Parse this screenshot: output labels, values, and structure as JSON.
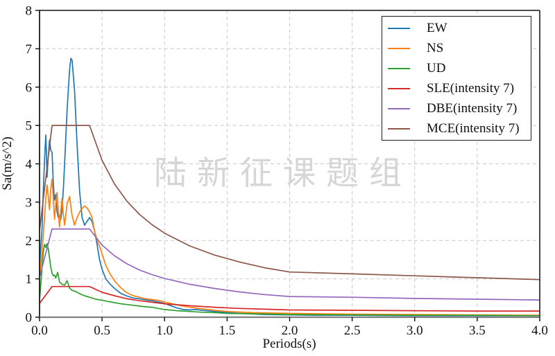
{
  "figure": {
    "background": "#ffffff",
    "watermark_text": "陆新征课题组",
    "watermark_color": "#d6d6d6"
  },
  "chart_data": {
    "type": "line",
    "title": "",
    "xlabel": "Periods(s)",
    "ylabel": "Sa(m/s^2)",
    "xlim": [
      0,
      4
    ],
    "ylim": [
      0,
      8
    ],
    "xticks": [
      0.0,
      0.5,
      1.0,
      1.5,
      2.0,
      2.5,
      3.0,
      3.5,
      4.0
    ],
    "xtick_labels": [
      "0.0",
      "0.5",
      "1.0",
      "1.5",
      "2.0",
      "2.5",
      "3.0",
      "3.5",
      "4.0"
    ],
    "yticks": [
      0,
      1,
      2,
      3,
      4,
      5,
      6,
      7,
      8
    ],
    "ytick_labels": [
      "0",
      "1",
      "2",
      "3",
      "4",
      "5",
      "6",
      "7",
      "8"
    ],
    "grid": "dashed",
    "grid_color": "#c9c9c9",
    "legend_position": "upper right",
    "watermark": "陆新征课题组",
    "series": [
      {
        "name": "EW",
        "color": "#1f77b4",
        "points": [
          [
            0,
            1.35
          ],
          [
            0.02,
            2.3
          ],
          [
            0.03,
            3.3
          ],
          [
            0.04,
            4.1
          ],
          [
            0.05,
            4.75
          ],
          [
            0.055,
            4.3
          ],
          [
            0.06,
            3.65
          ],
          [
            0.07,
            4.2
          ],
          [
            0.08,
            4.62
          ],
          [
            0.09,
            4.35
          ],
          [
            0.1,
            4.3
          ],
          [
            0.11,
            3.5
          ],
          [
            0.12,
            3.05
          ],
          [
            0.13,
            3.2
          ],
          [
            0.14,
            2.75
          ],
          [
            0.15,
            2.6
          ],
          [
            0.16,
            2.65
          ],
          [
            0.17,
            2.55
          ],
          [
            0.18,
            2.8
          ],
          [
            0.19,
            3.3
          ],
          [
            0.2,
            4.0
          ],
          [
            0.22,
            5.4
          ],
          [
            0.24,
            6.45
          ],
          [
            0.25,
            6.75
          ],
          [
            0.26,
            6.7
          ],
          [
            0.28,
            5.9
          ],
          [
            0.3,
            4.5
          ],
          [
            0.32,
            3.3
          ],
          [
            0.34,
            2.6
          ],
          [
            0.36,
            2.4
          ],
          [
            0.38,
            2.5
          ],
          [
            0.4,
            2.6
          ],
          [
            0.42,
            2.5
          ],
          [
            0.44,
            2.25
          ],
          [
            0.46,
            1.9
          ],
          [
            0.48,
            1.5
          ],
          [
            0.5,
            1.25
          ],
          [
            0.53,
            1.0
          ],
          [
            0.56,
            0.88
          ],
          [
            0.6,
            0.75
          ],
          [
            0.65,
            0.62
          ],
          [
            0.7,
            0.55
          ],
          [
            0.75,
            0.5
          ],
          [
            0.8,
            0.48
          ],
          [
            0.85,
            0.45
          ],
          [
            0.9,
            0.43
          ],
          [
            0.95,
            0.4
          ],
          [
            1.0,
            0.36
          ],
          [
            1.05,
            0.3
          ],
          [
            1.1,
            0.24
          ],
          [
            1.15,
            0.2
          ],
          [
            1.2,
            0.19
          ],
          [
            1.25,
            0.2
          ],
          [
            1.3,
            0.18
          ],
          [
            1.4,
            0.15
          ],
          [
            1.5,
            0.12
          ],
          [
            1.6,
            0.1
          ],
          [
            1.8,
            0.07
          ],
          [
            2.0,
            0.06
          ],
          [
            2.2,
            0.05
          ],
          [
            2.5,
            0.05
          ],
          [
            3.0,
            0.04
          ],
          [
            3.5,
            0.04
          ],
          [
            4.0,
            0.04
          ]
        ]
      },
      {
        "name": "NS",
        "color": "#ff7f0e",
        "points": [
          [
            0,
            1.05
          ],
          [
            0.02,
            1.7
          ],
          [
            0.04,
            2.6
          ],
          [
            0.05,
            3.1
          ],
          [
            0.06,
            3.45
          ],
          [
            0.07,
            3.15
          ],
          [
            0.08,
            2.8
          ],
          [
            0.09,
            3.35
          ],
          [
            0.1,
            3.6
          ],
          [
            0.11,
            3.1
          ],
          [
            0.12,
            2.55
          ],
          [
            0.13,
            2.95
          ],
          [
            0.14,
            3.25
          ],
          [
            0.15,
            2.8
          ],
          [
            0.16,
            2.35
          ],
          [
            0.17,
            2.75
          ],
          [
            0.18,
            3.1
          ],
          [
            0.19,
            2.7
          ],
          [
            0.2,
            2.4
          ],
          [
            0.22,
            2.95
          ],
          [
            0.24,
            3.15
          ],
          [
            0.26,
            2.65
          ],
          [
            0.28,
            2.4
          ],
          [
            0.3,
            2.6
          ],
          [
            0.33,
            2.8
          ],
          [
            0.36,
            2.9
          ],
          [
            0.38,
            2.85
          ],
          [
            0.4,
            2.75
          ],
          [
            0.42,
            2.6
          ],
          [
            0.44,
            2.25
          ],
          [
            0.46,
            2.0
          ],
          [
            0.48,
            1.85
          ],
          [
            0.5,
            1.65
          ],
          [
            0.53,
            1.35
          ],
          [
            0.56,
            1.15
          ],
          [
            0.6,
            0.95
          ],
          [
            0.64,
            0.8
          ],
          [
            0.68,
            0.68
          ],
          [
            0.72,
            0.6
          ],
          [
            0.76,
            0.55
          ],
          [
            0.8,
            0.52
          ],
          [
            0.85,
            0.48
          ],
          [
            0.9,
            0.46
          ],
          [
            0.95,
            0.44
          ],
          [
            1.0,
            0.4
          ],
          [
            1.05,
            0.36
          ],
          [
            1.1,
            0.32
          ],
          [
            1.2,
            0.26
          ],
          [
            1.3,
            0.22
          ],
          [
            1.4,
            0.18
          ],
          [
            1.5,
            0.15
          ],
          [
            1.7,
            0.12
          ],
          [
            2.0,
            0.1
          ],
          [
            2.5,
            0.08
          ],
          [
            3.0,
            0.07
          ],
          [
            3.5,
            0.06
          ],
          [
            4.0,
            0.05
          ]
        ]
      },
      {
        "name": "UD",
        "color": "#2ca02c",
        "points": [
          [
            0,
            0.45
          ],
          [
            0.01,
            0.85
          ],
          [
            0.02,
            1.3
          ],
          [
            0.03,
            1.7
          ],
          [
            0.04,
            1.9
          ],
          [
            0.05,
            1.82
          ],
          [
            0.06,
            1.92
          ],
          [
            0.07,
            1.78
          ],
          [
            0.08,
            1.55
          ],
          [
            0.09,
            1.3
          ],
          [
            0.1,
            1.15
          ],
          [
            0.11,
            1.08
          ],
          [
            0.12,
            1.1
          ],
          [
            0.13,
            1.02
          ],
          [
            0.145,
            1.17
          ],
          [
            0.16,
            0.92
          ],
          [
            0.18,
            0.86
          ],
          [
            0.2,
            0.84
          ],
          [
            0.22,
            0.95
          ],
          [
            0.24,
            0.76
          ],
          [
            0.26,
            0.7
          ],
          [
            0.28,
            0.68
          ],
          [
            0.3,
            0.65
          ],
          [
            0.33,
            0.6
          ],
          [
            0.36,
            0.56
          ],
          [
            0.4,
            0.52
          ],
          [
            0.45,
            0.47
          ],
          [
            0.5,
            0.44
          ],
          [
            0.55,
            0.41
          ],
          [
            0.6,
            0.38
          ],
          [
            0.65,
            0.35
          ],
          [
            0.7,
            0.33
          ],
          [
            0.75,
            0.31
          ],
          [
            0.8,
            0.29
          ],
          [
            0.85,
            0.27
          ],
          [
            0.9,
            0.26
          ],
          [
            0.95,
            0.23
          ],
          [
            1.0,
            0.2
          ],
          [
            1.1,
            0.17
          ],
          [
            1.2,
            0.15
          ],
          [
            1.3,
            0.13
          ],
          [
            1.4,
            0.12
          ],
          [
            1.5,
            0.1
          ],
          [
            1.7,
            0.09
          ],
          [
            2.0,
            0.07
          ],
          [
            2.5,
            0.06
          ],
          [
            3.0,
            0.05
          ],
          [
            3.5,
            0.05
          ],
          [
            4.0,
            0.04
          ]
        ]
      },
      {
        "name": "SLE(intensity 7)",
        "color": "#d62728",
        "points": [
          [
            0,
            0.36
          ],
          [
            0.1,
            0.8
          ],
          [
            0.4,
            0.8
          ],
          [
            0.5,
            0.65
          ],
          [
            0.6,
            0.56
          ],
          [
            0.7,
            0.48
          ],
          [
            0.8,
            0.43
          ],
          [
            0.9,
            0.39
          ],
          [
            1.0,
            0.35
          ],
          [
            1.2,
            0.3
          ],
          [
            1.4,
            0.26
          ],
          [
            1.6,
            0.23
          ],
          [
            1.8,
            0.21
          ],
          [
            2.0,
            0.19
          ],
          [
            2.5,
            0.18
          ],
          [
            3.0,
            0.17
          ],
          [
            3.5,
            0.16
          ],
          [
            4.0,
            0.16
          ]
        ]
      },
      {
        "name": "DBE(intensity 7)",
        "color": "#9467bd",
        "points": [
          [
            0,
            1.04
          ],
          [
            0.1,
            2.3
          ],
          [
            0.4,
            2.3
          ],
          [
            0.5,
            1.88
          ],
          [
            0.6,
            1.6
          ],
          [
            0.7,
            1.39
          ],
          [
            0.8,
            1.23
          ],
          [
            0.9,
            1.11
          ],
          [
            1.0,
            1.01
          ],
          [
            1.2,
            0.86
          ],
          [
            1.4,
            0.75
          ],
          [
            1.6,
            0.66
          ],
          [
            1.8,
            0.59
          ],
          [
            2.0,
            0.54
          ],
          [
            2.5,
            0.52
          ],
          [
            3.0,
            0.49
          ],
          [
            3.5,
            0.47
          ],
          [
            4.0,
            0.45
          ]
        ]
      },
      {
        "name": "MCE(intensity 7)",
        "color": "#8c564b",
        "points": [
          [
            0,
            2.25
          ],
          [
            0.1,
            5.0
          ],
          [
            0.4,
            5.0
          ],
          [
            0.5,
            4.09
          ],
          [
            0.6,
            3.47
          ],
          [
            0.7,
            3.02
          ],
          [
            0.8,
            2.68
          ],
          [
            0.9,
            2.41
          ],
          [
            1.0,
            2.19
          ],
          [
            1.2,
            1.86
          ],
          [
            1.4,
            1.62
          ],
          [
            1.6,
            1.44
          ],
          [
            1.8,
            1.29
          ],
          [
            2.0,
            1.18
          ],
          [
            2.5,
            1.13
          ],
          [
            3.0,
            1.08
          ],
          [
            3.5,
            1.03
          ],
          [
            4.0,
            0.98
          ]
        ]
      }
    ]
  }
}
